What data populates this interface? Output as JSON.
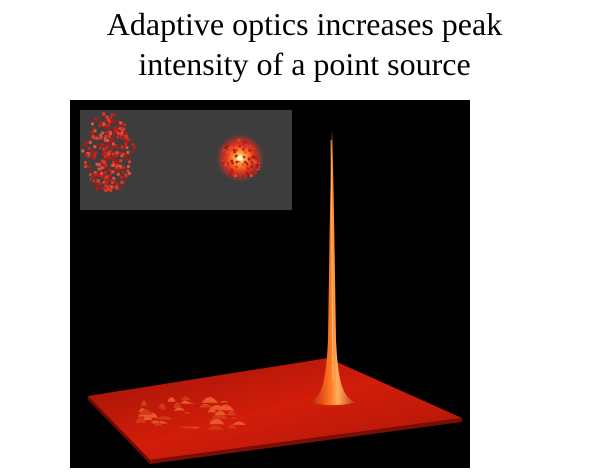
{
  "title": {
    "line1": "Adaptive optics increases peak",
    "line2": "intensity of a point source"
  },
  "colors": {
    "background": "#ffffff",
    "figure_background": "#000000",
    "inset_background": "#3d3d3d",
    "speckle": "#c8201a",
    "peak": "#ff6a1a",
    "surface": "#c81a08"
  }
}
